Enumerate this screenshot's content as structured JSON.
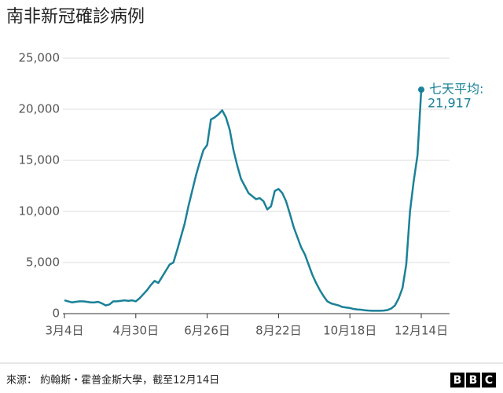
{
  "chart_data": {
    "type": "line",
    "title": "南非新冠確診病例",
    "annotation": "七天平均:",
    "source": "來源： 約翰斯・霍普金斯大學，截至12月14日",
    "logo": [
      "B",
      "B",
      "C"
    ],
    "categories": [
      "3月4日",
      null,
      null,
      null,
      null,
      null,
      null,
      null,
      null,
      null,
      null,
      null,
      null,
      null,
      null,
      null,
      null,
      null,
      null,
      "4月30日",
      null,
      null,
      null,
      null,
      null,
      null,
      null,
      null,
      null,
      null,
      null,
      null,
      null,
      null,
      null,
      null,
      null,
      null,
      "6月26日",
      null,
      null,
      null,
      null,
      null,
      null,
      null,
      null,
      null,
      null,
      null,
      null,
      null,
      null,
      null,
      null,
      null,
      null,
      "8月22日",
      null,
      null,
      null,
      null,
      null,
      null,
      null,
      null,
      null,
      null,
      null,
      null,
      null,
      null,
      null,
      null,
      null,
      null,
      "10月18日",
      null,
      null,
      null,
      null,
      null,
      null,
      null,
      null,
      null,
      null,
      null,
      null,
      null,
      null,
      null,
      null,
      null,
      null,
      "12月14日"
    ],
    "series": [
      {
        "name": "七天平均",
        "color": "#1b8197",
        "values": [
          1300,
          1200,
          1100,
          1150,
          1200,
          1200,
          1150,
          1100,
          1100,
          1150,
          1000,
          800,
          900,
          1200,
          1200,
          1250,
          1300,
          1250,
          1300,
          1200,
          1500,
          1900,
          2300,
          2800,
          3200,
          3000,
          3600,
          4200,
          4800,
          5000,
          6200,
          7500,
          8800,
          10500,
          12000,
          13500,
          14800,
          16000,
          16500,
          19000,
          19200,
          19500,
          19900,
          19200,
          18000,
          16000,
          14500,
          13200,
          12500,
          11800,
          11500,
          11200,
          11300,
          11000,
          10200,
          10500,
          12000,
          12200,
          11800,
          11000,
          9800,
          8500,
          7500,
          6500,
          5800,
          4800,
          3800,
          3000,
          2300,
          1700,
          1200,
          1000,
          900,
          800,
          650,
          600,
          550,
          450,
          400,
          380,
          330,
          300,
          280,
          280,
          280,
          300,
          350,
          500,
          800,
          1500,
          2500,
          4800,
          10000,
          13000,
          15500,
          21917
        ],
        "value_labels": [
          null,
          null,
          null,
          null,
          null,
          null,
          null,
          null,
          null,
          null,
          null,
          null,
          null,
          null,
          null,
          null,
          null,
          null,
          null,
          null,
          null,
          null,
          null,
          null,
          null,
          null,
          null,
          null,
          null,
          null,
          null,
          null,
          null,
          null,
          null,
          null,
          null,
          null,
          null,
          null,
          null,
          null,
          null,
          null,
          null,
          null,
          null,
          null,
          null,
          null,
          null,
          null,
          null,
          null,
          null,
          null,
          null,
          null,
          null,
          null,
          null,
          null,
          null,
          null,
          null,
          null,
          null,
          null,
          null,
          null,
          null,
          null,
          null,
          null,
          null,
          null,
          null,
          null,
          null,
          null,
          null,
          null,
          null,
          null,
          null,
          null,
          null,
          null,
          null,
          null,
          null,
          null,
          null,
          null,
          null,
          "21,917"
        ]
      }
    ],
    "ylim": [
      0,
      25000
    ],
    "yticks": [
      0,
      {
        "value": 5000,
        "label": "5,000"
      },
      {
        "value": 10000,
        "label": "10,000"
      },
      {
        "value": 15000,
        "label": "15,000"
      },
      {
        "value": 20000,
        "label": "20,000"
      },
      {
        "value": 25000,
        "label": "25,000"
      }
    ],
    "grid": true
  }
}
